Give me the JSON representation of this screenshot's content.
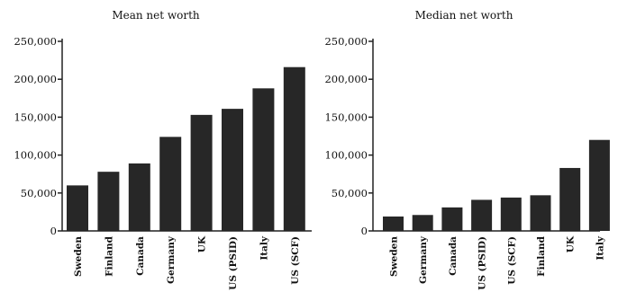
{
  "chart_data": [
    {
      "type": "bar",
      "title": "Mean net worth",
      "categories": [
        "Sweden",
        "Finland",
        "Canada",
        "Germany",
        "UK",
        "US (PSID)",
        "Italy",
        "US (SCF)"
      ],
      "values": [
        60000,
        78000,
        89000,
        124000,
        153000,
        161000,
        188000,
        216000
      ],
      "ylim": [
        0,
        250000
      ],
      "yticks": [
        "0",
        "50,000",
        "100,000",
        "150,000",
        "200,000",
        "250,000"
      ],
      "xlabel": "",
      "ylabel": "",
      "grid": false,
      "color": "#272727"
    },
    {
      "type": "bar",
      "title": "Median net worth",
      "categories": [
        "Sweden",
        "Germany",
        "Canada",
        "US (PSID)",
        "US (SCF)",
        "Finland",
        "UK",
        "Italy"
      ],
      "values": [
        19000,
        21000,
        31000,
        41000,
        44000,
        47000,
        83000,
        120000
      ],
      "ylim": [
        0,
        250000
      ],
      "yticks": [
        "0",
        "50,000",
        "100,000",
        "150,000",
        "200,000",
        "250,000"
      ],
      "xlabel": "",
      "ylabel": "",
      "grid": false,
      "color": "#272727"
    }
  ]
}
